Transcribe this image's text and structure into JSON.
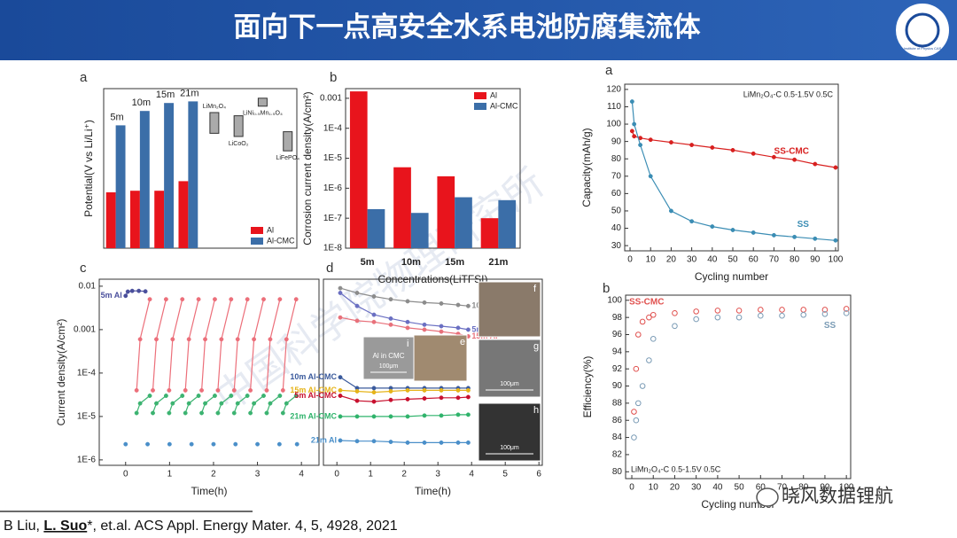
{
  "header": {
    "title": "面向下一点高安全水系电池防腐集流体",
    "logo_text": "Institute of Physics CAS"
  },
  "watermarks": [
    "中国科学院物理研究所",
    "晓风数据锂航"
  ],
  "citation": [
    "B Liu, ",
    "L. Suo",
    "*, et.al. ACS Appl. Energy Mater. 4, 5, 4928, 2021"
  ],
  "chart_data": [
    {
      "type": "bar",
      "panel": "a",
      "ylabel": "Potential(V vs Li/Li⁺)",
      "categories": [
        "5m",
        "10m",
        "15m",
        "21m"
      ],
      "category_label_position": "top",
      "series": [
        {
          "name": "Al",
          "color": "#e8141c",
          "values": [
            1.75,
            1.8,
            1.8,
            2.1
          ]
        },
        {
          "name": "Al-CMC",
          "color": "#3b6ea8",
          "values": [
            3.85,
            4.3,
            4.55,
            4.6
          ]
        }
      ],
      "ylim": [
        0,
        5
      ],
      "legend": "lower right",
      "reference_ranges": [
        {
          "label": "LiMn₂O₄",
          "range": [
            3.6,
            4.25
          ]
        },
        {
          "label": "LiNi₀.₅Mn₁.₅O₄",
          "range": [
            4.45,
            4.7
          ]
        },
        {
          "label": "LiCoO₂",
          "range": [
            3.5,
            4.15
          ]
        },
        {
          "label": "LiFePO₄",
          "range": [
            3.05,
            3.65
          ]
        }
      ]
    },
    {
      "type": "bar",
      "panel": "b",
      "ylabel": "Corrosion current density(A/cm²)",
      "xlabel": "Concentrations(LiTFSI)",
      "categories": [
        "5m",
        "10m",
        "15m",
        "21m"
      ],
      "category_label_position": "bottom",
      "series": [
        {
          "name": "Al",
          "color": "#e8141c",
          "values": [
            0.0017,
            5e-06,
            2.5e-06,
            1e-07
          ]
        },
        {
          "name": "Al-CMC",
          "color": "#3b6ea8",
          "values": [
            2e-07,
            1.5e-07,
            5e-07,
            4e-07
          ]
        }
      ],
      "ylog": true,
      "ylim": [
        1e-08,
        0.0021
      ],
      "yticks": [
        {
          "value": 1e-08,
          "label": "1E-8"
        },
        {
          "value": 1e-07,
          "label": "1E-7"
        },
        {
          "value": 1e-06,
          "label": "1E-6"
        },
        {
          "value": 1e-05,
          "label": "1E-5"
        },
        {
          "value": 0.0001,
          "label": "1E-4"
        },
        0.001
      ],
      "legend": "upper right"
    },
    {
      "type": "line",
      "panel": "c",
      "ylabel": "Current density(A/cm²)",
      "xlabel": "Time(h)",
      "ylog": true,
      "ylim": [
        7.5e-07,
        0.0145
      ],
      "yticks": [
        0.01,
        0.001,
        {
          "value": 0.0001,
          "label": "1E-4"
        },
        {
          "value": 1e-05,
          "label": "1E-5"
        },
        {
          "value": 1e-06,
          "label": "1E-6"
        }
      ],
      "xlim": [
        -0.6,
        4.4
      ],
      "xticks": [
        0,
        1,
        2,
        3,
        4
      ],
      "series": [
        {
          "color": "#ec6f7a",
          "x": [
            0.25,
            0.33,
            0.55,
            null,
            0.62,
            0.7,
            0.92,
            null,
            0.99,
            1.07,
            1.29,
            null,
            1.36,
            1.44,
            1.66,
            null,
            1.73,
            1.81,
            2.03,
            null,
            2.1,
            2.18,
            2.4,
            null,
            2.47,
            2.55,
            2.77,
            null,
            2.84,
            2.92,
            3.14,
            null,
            3.21,
            3.29,
            3.51,
            null,
            3.58,
            3.66,
            3.88
          ],
          "values": [
            4e-05,
            0.0006,
            0.005,
            null,
            4e-05,
            0.0006,
            0.005,
            null,
            4e-05,
            0.0006,
            0.005,
            null,
            4e-05,
            0.0006,
            0.005,
            null,
            4e-05,
            0.0006,
            0.005,
            null,
            4e-05,
            0.0006,
            0.005,
            null,
            4e-05,
            0.0006,
            0.005,
            null,
            4e-05,
            0.0006,
            0.005,
            null,
            4e-05,
            0.0006,
            0.005,
            null,
            4e-05,
            0.0006,
            0.005
          ]
        },
        {
          "color": "#3cb371",
          "x": [
            0.25,
            0.33,
            0.55,
            null,
            0.62,
            0.7,
            0.92,
            null,
            0.99,
            1.07,
            1.29,
            null,
            1.36,
            1.44,
            1.66,
            null,
            1.73,
            1.81,
            2.03,
            null,
            2.1,
            2.18,
            2.4,
            null,
            2.47,
            2.55,
            2.77,
            null,
            2.84,
            2.92,
            3.14,
            null,
            3.21,
            3.29,
            3.51,
            null,
            3.58,
            3.66,
            3.88
          ],
          "values": [
            1.2e-05,
            2e-05,
            3e-05,
            null,
            1.2e-05,
            2e-05,
            3e-05,
            null,
            1.2e-05,
            2e-05,
            3e-05,
            null,
            1.2e-05,
            2e-05,
            3e-05,
            null,
            1.2e-05,
            2e-05,
            3e-05,
            null,
            1.2e-05,
            2e-05,
            3e-05,
            null,
            1.2e-05,
            2e-05,
            3e-05,
            null,
            1.2e-05,
            2e-05,
            3e-05,
            null,
            1.2e-05,
            2e-05,
            3e-05,
            null,
            1.2e-05,
            2e-05,
            3e-05
          ]
        },
        {
          "color": "#4a8fc9",
          "line": false,
          "x": [
            0,
            0.5,
            1,
            1.5,
            2,
            2.5,
            3,
            3.5,
            3.9
          ],
          "values": [
            2.3e-06,
            2.3e-06,
            2.3e-06,
            2.3e-06,
            2.3e-06,
            2.3e-06,
            2.3e-06,
            2.3e-06,
            2.3e-06
          ]
        },
        {
          "name": "5m Al",
          "color": "#4a4f9c",
          "label_position": "start",
          "x": [
            0,
            0.05,
            0.15,
            0.3,
            0.45
          ],
          "values": [
            0.006,
            0.0075,
            0.0078,
            0.0078,
            0.0076
          ]
        }
      ]
    },
    {
      "type": "line",
      "panel": "d",
      "xlabel": "Time(h)",
      "ylog": true,
      "ylim": [
        7.5e-07,
        0.0145
      ],
      "xlim": [
        -0.4,
        6.1
      ],
      "xticks": [
        0,
        1,
        2,
        3,
        4,
        5,
        6
      ],
      "x": [
        0.1,
        0.6,
        1.1,
        1.6,
        2.1,
        2.6,
        3.1,
        3.6,
        3.9
      ],
      "series": [
        {
          "name": "10m Al",
          "color": "#8c8c8c",
          "label_position": "end",
          "values": [
            0.009,
            0.007,
            0.0058,
            0.005,
            0.0045,
            0.0042,
            0.004,
            0.0037,
            0.0035
          ]
        },
        {
          "name": "15m Al",
          "color": "#e8707a",
          "label_position": "end",
          "values": [
            0.0019,
            0.0016,
            0.0015,
            0.0013,
            0.0011,
            0.001,
            0.0009,
            0.0008,
            0.0007
          ]
        },
        {
          "name": "5m Al",
          "color": "#6a6fc2",
          "label_position": "end",
          "values": [
            0.007,
            0.0035,
            0.0022,
            0.0018,
            0.0015,
            0.0013,
            0.0012,
            0.0011,
            0.001
          ]
        },
        {
          "name": "10m Al-CMC",
          "color": "#3a5a9c",
          "label_position": "start",
          "values": [
            8e-05,
            4.5e-05,
            4.5e-05,
            4.5e-05,
            4.5e-05,
            4.5e-05,
            4.5e-05,
            4.5e-05,
            4.5e-05
          ]
        },
        {
          "name": "15m Al-CMC",
          "color": "#e6b41a",
          "label_position": "start",
          "values": [
            4e-05,
            3.8e-05,
            3.6e-05,
            3.8e-05,
            4e-05,
            4e-05,
            4e-05,
            4e-05,
            4e-05
          ]
        },
        {
          "name": "5m Al-CMC",
          "color": "#c8102e",
          "label_position": "start",
          "values": [
            3e-05,
            2.3e-05,
            2.2e-05,
            2.4e-05,
            2.5e-05,
            2.6e-05,
            2.7e-05,
            2.7e-05,
            2.8e-05
          ]
        },
        {
          "name": "21m Al-CMC",
          "color": "#2fb36b",
          "label_position": "start",
          "values": [
            1e-05,
            1e-05,
            1e-05,
            1e-05,
            1e-05,
            1.05e-05,
            1.05e-05,
            1.1e-05,
            1.1e-05
          ]
        },
        {
          "name": "21m Al",
          "color": "#4a8fc9",
          "label_position": "start",
          "values": [
            2.8e-06,
            2.7e-06,
            2.7e-06,
            2.6e-06,
            2.5e-06,
            2.5e-06,
            2.5e-06,
            2.5e-06,
            2.5e-06
          ]
        }
      ],
      "insets": [
        {
          "label": "f"
        },
        {
          "label": "e"
        },
        {
          "label": "i",
          "caption": "Al in CMC",
          "scale": "100μm"
        },
        {
          "label": "g",
          "scale": "100μm"
        },
        {
          "label": "h",
          "scale": "100μm"
        }
      ]
    },
    {
      "type": "line",
      "panel": "a",
      "ylabel": "Capacity(mAh/g)",
      "xlabel": "Cycling number",
      "annotation": "LiMn₂O₄-C 0.5-1.5V 0.5C",
      "ylim": [
        27,
        123
      ],
      "yticks": [
        30,
        40,
        50,
        60,
        70,
        80,
        90,
        100,
        110,
        120
      ],
      "xlim": [
        -2.6,
        101.3
      ],
      "xticks": [
        0,
        10,
        20,
        30,
        40,
        50,
        60,
        70,
        80,
        90,
        100
      ],
      "x": [
        1,
        2,
        5,
        10,
        20,
        30,
        40,
        50,
        60,
        70,
        80,
        90,
        100
      ],
      "series": [
        {
          "name": "SS-CMC",
          "color": "#d8201f",
          "label_position": "end-above",
          "values": [
            96,
            93,
            92,
            91,
            89.5,
            88,
            86.5,
            85,
            83,
            81,
            79.5,
            77,
            75
          ]
        },
        {
          "name": "SS",
          "color": "#3b8db4",
          "label_position": "end-above",
          "values": [
            113,
            100,
            88,
            70,
            50,
            44,
            41,
            39,
            37.5,
            36,
            35,
            34,
            33
          ]
        }
      ]
    },
    {
      "type": "line",
      "panel": "b",
      "ylabel": "Efficiency(%)",
      "xlabel": "Cycling number",
      "annotation": "LiMn₂O₄-C 0.5-1.5V 0.5C",
      "line": false,
      "marker": "open",
      "ylim": [
        79.2,
        100.6
      ],
      "yticks": [
        80,
        82,
        84,
        86,
        88,
        90,
        92,
        94,
        96,
        98,
        100
      ],
      "xlim": [
        -2.9,
        102
      ],
      "xticks": [
        0,
        10,
        20,
        30,
        40,
        50,
        60,
        70,
        80,
        90,
        100
      ],
      "x": [
        1,
        2,
        3,
        5,
        8,
        10,
        20,
        30,
        40,
        50,
        60,
        70,
        80,
        90,
        100
      ],
      "series": [
        {
          "name": "SS-CMC",
          "color": "#e0504e",
          "label_position": "top-left",
          "values": [
            87,
            92,
            96,
            97.5,
            98,
            98.3,
            98.5,
            98.7,
            98.8,
            98.8,
            98.9,
            98.9,
            98.9,
            98.9,
            99
          ]
        },
        {
          "name": "SS",
          "color": "#7a9bb5",
          "label_position": "end-below",
          "values": [
            84,
            86,
            88,
            90,
            93,
            95.5,
            97,
            97.8,
            98,
            98,
            98.2,
            98.2,
            98.3,
            98.4,
            98.5
          ]
        }
      ]
    }
  ]
}
